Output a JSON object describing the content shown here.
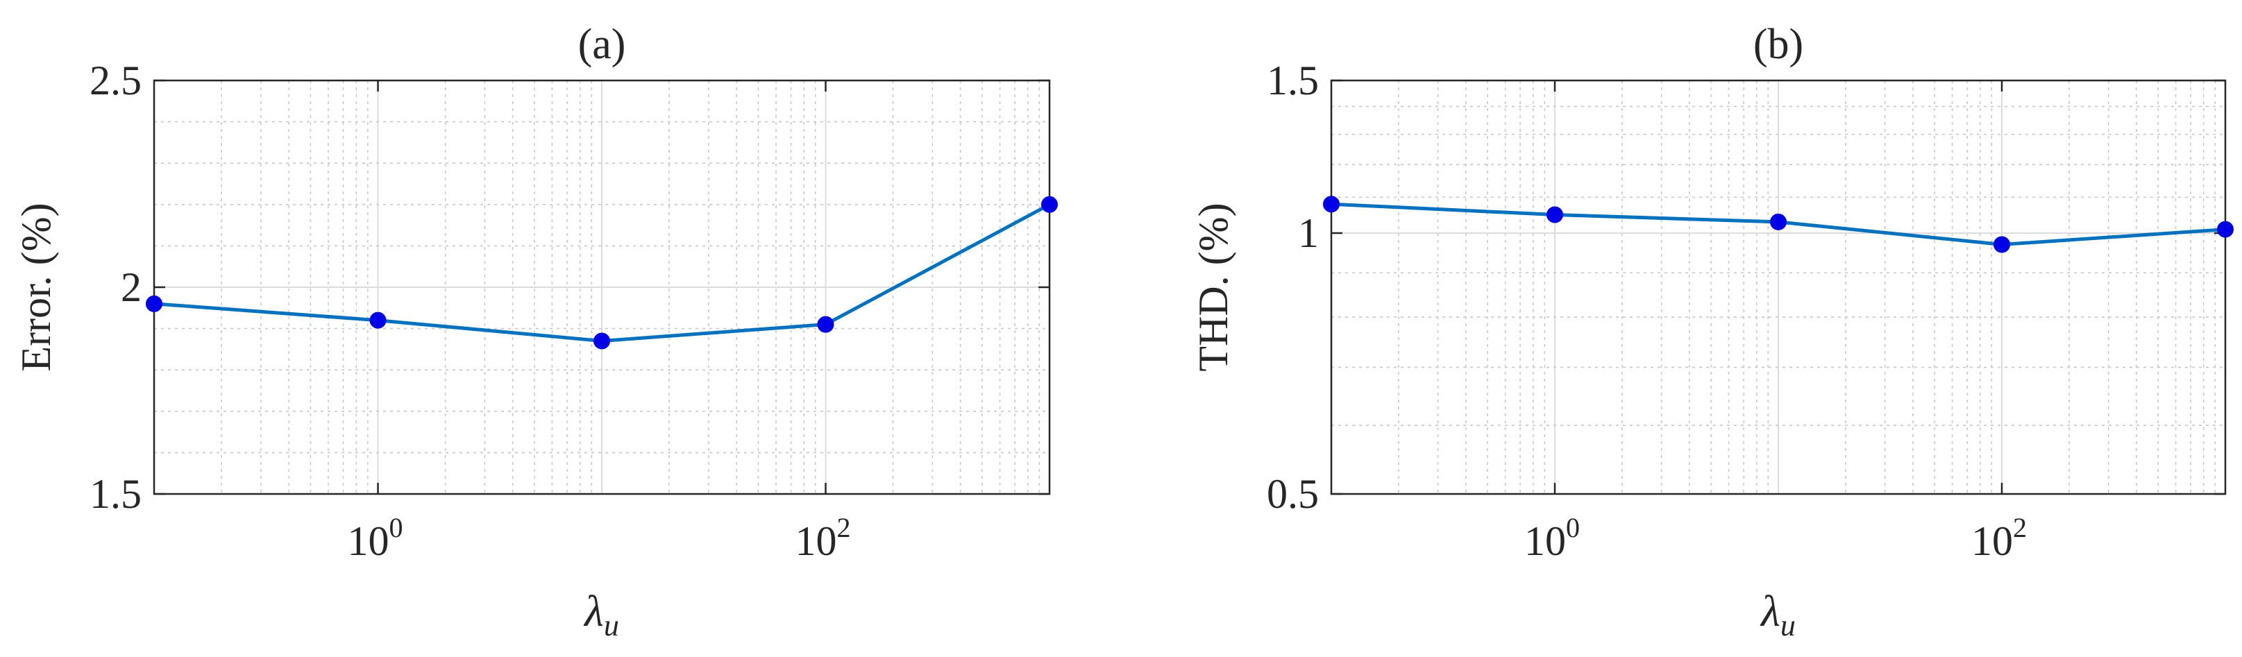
{
  "chart_data": [
    {
      "type": "line",
      "title": "(a)",
      "xlabel": {
        "base": "λ",
        "sub": "u"
      },
      "ylabel": "Error. (%)",
      "xscale": "log",
      "xlim": [
        0.1,
        1000
      ],
      "ylim": [
        1.5,
        2.5
      ],
      "yticks": [
        1.5,
        2,
        2.5
      ],
      "yticklabels": [
        "1.5",
        "2",
        "2.5"
      ],
      "xticks": [
        1,
        100
      ],
      "xticklabels": [
        {
          "base": "10",
          "exp": "0"
        },
        {
          "base": "10",
          "exp": "2"
        }
      ],
      "grid": true,
      "legend": "none",
      "series_color": "#0072bd",
      "marker_color": "#0000e6",
      "x": [
        0.1,
        1,
        10,
        100,
        1000
      ],
      "y": [
        1.96,
        1.92,
        1.87,
        1.91,
        2.2
      ]
    },
    {
      "type": "line",
      "title": "(b)",
      "xlabel": {
        "base": "λ",
        "sub": "u"
      },
      "ylabel": "THD. (%)",
      "xscale": "log",
      "yscale": "log",
      "xlim": [
        0.1,
        1000
      ],
      "ylim": [
        0.5,
        1.5
      ],
      "yticks": [
        0.5,
        1,
        1.5
      ],
      "yticklabels": [
        "0.5",
        "1",
        "1.5"
      ],
      "xticks": [
        1,
        100
      ],
      "xticklabels": [
        {
          "base": "10",
          "exp": "0"
        },
        {
          "base": "10",
          "exp": "2"
        }
      ],
      "grid": true,
      "legend": "none",
      "series_color": "#0072bd",
      "marker_color": "#0000e6",
      "x": [
        0.1,
        1,
        10,
        100,
        1000
      ],
      "y": [
        1.08,
        1.05,
        1.03,
        0.97,
        1.01
      ]
    }
  ]
}
